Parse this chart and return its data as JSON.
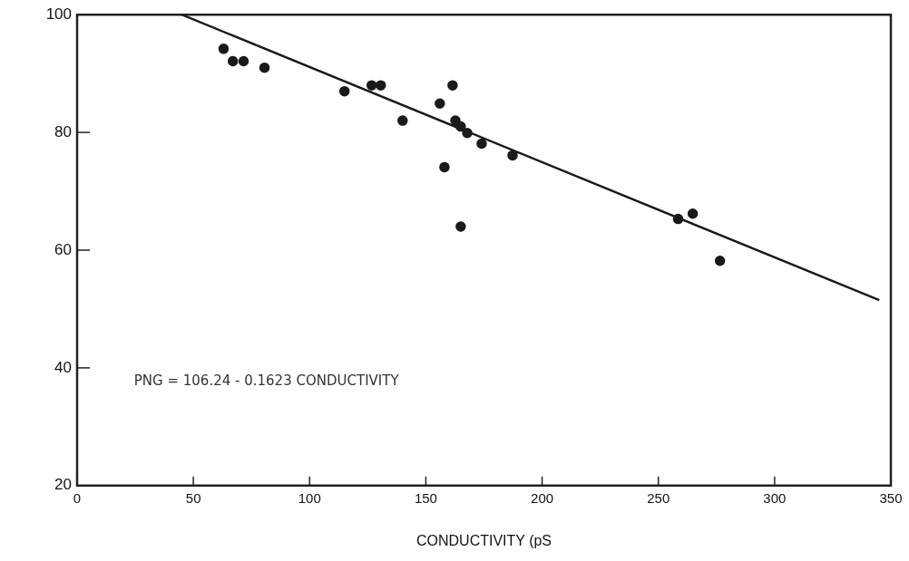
{
  "chart_data": {
    "type": "scatter",
    "xlabel": "CONDUCTIVITY (pS",
    "x": [
      63,
      67,
      71.6,
      80.6,
      115,
      126.7,
      130.6,
      140,
      156,
      161.5,
      162.7,
      165,
      167.8,
      158,
      174,
      187.3,
      165,
      258.5,
      264.8,
      276.5
    ],
    "series": [
      {
        "color": "#1a1a1a",
        "values": [
          94.2,
          92.1,
          92.1,
          91.0,
          87.0,
          88.0,
          88.0,
          82.0,
          84.9,
          88.0,
          82.0,
          81.0,
          79.9,
          74.1,
          78.1,
          76.1,
          64.0,
          65.3,
          66.2,
          58.2
        ]
      },
      {
        "type": "line",
        "color": "#1a1a1a",
        "x": [
          45,
          345
        ],
        "values": [
          100,
          51.5
        ],
        "marker": "none"
      }
    ],
    "annotations": [
      "PNG = 106.24 - 0.1623 CONDUCTIVITY"
    ],
    "xlim": [
      0,
      350
    ],
    "xticks": [
      0,
      50,
      100,
      150,
      200,
      250,
      300,
      350
    ],
    "ylim": [
      20,
      100
    ],
    "yticks": [
      20,
      40,
      60,
      80,
      100
    ],
    "marker": "circle",
    "grid": false,
    "legend": false
  }
}
